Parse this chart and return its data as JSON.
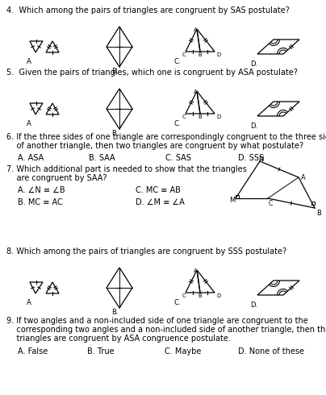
{
  "bg_color": "#ffffff",
  "text_color": "#000000",
  "q4_text": "4.  Which among the pairs of triangles are congruent by SAS postulate?",
  "q5_text": "5.  Given the pairs of triangles, which one is congruent by ASA postulate?",
  "q6_line1": "6. If the three sides of one triangle are correspondingly congruent to the three sides",
  "q6_line2": "    of another triangle, then two triangles are congruent by what postulate?",
  "q6_choices": [
    "A. ASA",
    "B. SAA",
    "C. SAS",
    "D. SSS"
  ],
  "q7_line1": "7. Which additional part is needed to show that the triangles",
  "q7_line2": "    are congruent by SAA?",
  "q7_A": "A. ∠N ≡ ∠B",
  "q7_B": "B. MC ≡ AC",
  "q7_C": "C. MC ≡ AB",
  "q7_D": "D. ∠M ≡ ∠A",
  "q8_text": "8. Which among the pairs of triangles are congruent by SSS postulate?",
  "q9_line1": "9. If two angles and a non-included side of one triangle are congruent to the",
  "q9_line2": "    corresponding two angles and a non-included side of another triangle, then the",
  "q9_line3": "    triangles are congruent by ASA congruence postulate.",
  "q9_choices": [
    "A. False",
    "B. True",
    "C. Maybe",
    "D. None of these"
  ],
  "fs": 7.0,
  "fs_small": 6.0,
  "fs_label": 5.0
}
